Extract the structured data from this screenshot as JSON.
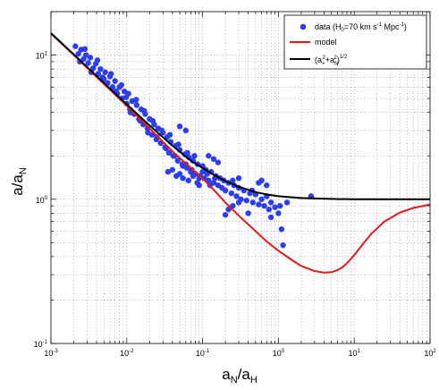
{
  "chart_data": {
    "type": "scatter",
    "x_scale": "log",
    "y_scale": "log",
    "xlim": [
      0.001,
      100
    ],
    "ylim": [
      0.1,
      20
    ],
    "grid": true,
    "legend_position": "top-right",
    "x_ticks": [
      0.001,
      0.01,
      0.1,
      1,
      10,
      100
    ],
    "y_ticks": [
      0.1,
      1,
      10
    ],
    "xlabel": {
      "main": "a",
      "sub1": "N",
      "mid": "/a",
      "sub2": "H"
    },
    "ylabel": {
      "main": "a/a",
      "sub": "N"
    },
    "tick_label": {
      "base": "10",
      "exponents_x": [
        "-3",
        "-2",
        "-1",
        "0",
        "1",
        "2"
      ],
      "exponents_y": [
        "-1",
        "0",
        "1"
      ]
    },
    "legend": {
      "data": {
        "prefix": "data (H",
        "sub": "0",
        "mid": "=70 km s",
        "sup1": "-1",
        "suffix": " Mpc",
        "sup2": "-1",
        "end": ")"
      },
      "model": "model",
      "curve": {
        "open": "(a",
        "sub1": "+",
        "sup1": "2",
        "plus": "+a",
        "sub2": "N",
        "sup2": "2",
        "close": ")",
        "sup3": "1/2"
      }
    },
    "series": [
      {
        "name": "data",
        "kind": "scatter",
        "color": "#2b3ef0",
        "points": [
          [
            0.0021,
            11.5
          ],
          [
            0.0023,
            10.2
          ],
          [
            0.0025,
            10.9
          ],
          [
            0.0027,
            9.4
          ],
          [
            0.0029,
            10.0
          ],
          [
            0.0031,
            8.8
          ],
          [
            0.0033,
            9.6
          ],
          [
            0.0036,
            8.1
          ],
          [
            0.0039,
            8.7
          ],
          [
            0.0042,
            7.4
          ],
          [
            0.0045,
            8.0
          ],
          [
            0.0048,
            7.0
          ],
          [
            0.0052,
            7.6
          ],
          [
            0.0056,
            6.4
          ],
          [
            0.006,
            7.1
          ],
          [
            0.0065,
            6.0
          ],
          [
            0.007,
            6.6
          ],
          [
            0.0075,
            5.4
          ],
          [
            0.008,
            6.0
          ],
          [
            0.0086,
            5.0
          ],
          [
            0.0093,
            5.6
          ],
          [
            0.01,
            4.6
          ],
          [
            0.0105,
            5.4
          ],
          [
            0.011,
            4.2
          ],
          [
            0.0118,
            4.8
          ],
          [
            0.0126,
            3.9
          ],
          [
            0.0135,
            4.5
          ],
          [
            0.0145,
            3.6
          ],
          [
            0.0155,
            4.2
          ],
          [
            0.0165,
            3.3
          ],
          [
            0.0175,
            3.9
          ],
          [
            0.0188,
            3.1
          ],
          [
            0.02,
            3.6
          ],
          [
            0.0215,
            2.8
          ],
          [
            0.023,
            3.3
          ],
          [
            0.0245,
            2.6
          ],
          [
            0.026,
            3.1
          ],
          [
            0.028,
            2.45
          ],
          [
            0.03,
            2.9
          ],
          [
            0.032,
            2.3
          ],
          [
            0.034,
            2.7
          ],
          [
            0.036,
            2.1
          ],
          [
            0.038,
            2.5
          ],
          [
            0.041,
            2.0
          ],
          [
            0.044,
            2.35
          ],
          [
            0.047,
            1.85
          ],
          [
            0.05,
            2.2
          ],
          [
            0.054,
            1.75
          ],
          [
            0.058,
            2.05
          ],
          [
            0.062,
            1.65
          ],
          [
            0.066,
            1.95
          ],
          [
            0.07,
            1.55
          ],
          [
            0.075,
            1.85
          ],
          [
            0.08,
            1.5
          ],
          [
            0.086,
            1.75
          ],
          [
            0.092,
            1.45
          ],
          [
            0.1,
            1.7
          ],
          [
            0.105,
            1.4
          ],
          [
            0.11,
            1.6
          ],
          [
            0.12,
            1.35
          ],
          [
            0.13,
            1.55
          ],
          [
            0.14,
            1.3
          ],
          [
            0.15,
            1.45
          ],
          [
            0.16,
            1.25
          ],
          [
            0.17,
            1.4
          ],
          [
            0.18,
            1.2
          ],
          [
            0.19,
            1.35
          ],
          [
            0.2,
            1.15
          ],
          [
            0.22,
            1.3
          ],
          [
            0.24,
            1.1
          ],
          [
            0.26,
            1.25
          ],
          [
            0.28,
            1.05
          ],
          [
            0.3,
            1.2
          ],
          [
            0.32,
            1.0
          ],
          [
            0.35,
            1.15
          ],
          [
            0.38,
            0.98
          ],
          [
            0.42,
            1.1
          ],
          [
            0.46,
            0.95
          ],
          [
            0.5,
            1.08
          ],
          [
            0.55,
            0.92
          ],
          [
            0.6,
            1.0
          ],
          [
            0.65,
            0.9
          ],
          [
            0.7,
            1.05
          ],
          [
            0.75,
            0.85
          ],
          [
            0.8,
            0.95
          ],
          [
            0.9,
            0.88
          ],
          [
            1.0,
            0.8
          ],
          [
            1.05,
            0.9
          ],
          [
            1.1,
            0.62
          ],
          [
            1.15,
            0.48
          ],
          [
            0.0024,
            9.0
          ],
          [
            0.0028,
            11.0
          ],
          [
            0.0034,
            7.6
          ],
          [
            0.0041,
            9.2
          ],
          [
            0.005,
            6.8
          ],
          [
            0.0062,
            7.4
          ],
          [
            0.0072,
            5.6
          ],
          [
            0.0085,
            6.2
          ],
          [
            0.0098,
            5.1
          ],
          [
            0.0112,
            4.0
          ],
          [
            0.0133,
            4.9
          ],
          [
            0.015,
            3.5
          ],
          [
            0.017,
            4.1
          ],
          [
            0.019,
            2.9
          ],
          [
            0.022,
            3.5
          ],
          [
            0.025,
            2.7
          ],
          [
            0.029,
            3.0
          ],
          [
            0.033,
            2.25
          ],
          [
            0.037,
            2.8
          ],
          [
            0.043,
            2.0
          ],
          [
            0.048,
            2.4
          ],
          [
            0.055,
            1.7
          ],
          [
            0.063,
            2.1
          ],
          [
            0.072,
            1.6
          ],
          [
            0.078,
            2.0
          ],
          [
            0.09,
            1.4
          ],
          [
            0.1,
            1.55
          ],
          [
            0.115,
            1.5
          ],
          [
            0.125,
            1.25
          ],
          [
            0.145,
            1.4
          ],
          [
            0.04,
            1.6
          ],
          [
            0.05,
            1.5
          ],
          [
            0.06,
            1.75
          ],
          [
            0.07,
            1.55
          ],
          [
            0.085,
            1.3
          ],
          [
            0.12,
            2.0
          ],
          [
            0.14,
            1.9
          ],
          [
            0.16,
            1.8
          ],
          [
            0.05,
            3.2
          ],
          [
            0.06,
            3.0
          ],
          [
            0.2,
            0.78
          ],
          [
            0.22,
            0.85
          ],
          [
            0.25,
            0.9
          ],
          [
            0.3,
            0.95
          ],
          [
            0.4,
            0.8
          ],
          [
            0.6,
            1.35
          ],
          [
            0.7,
            1.25
          ],
          [
            0.8,
            0.75
          ],
          [
            1.3,
            0.95
          ],
          [
            2.7,
            1.05
          ],
          [
            0.3,
            1.4
          ],
          [
            0.45,
            1.15
          ],
          [
            0.55,
            1.3
          ],
          [
            0.25,
            1.35
          ],
          [
            0.035,
            1.55
          ],
          [
            0.045,
            1.45
          ],
          [
            0.055,
            1.4
          ],
          [
            0.065,
            1.35
          ],
          [
            0.075,
            1.45
          ],
          [
            0.09,
            1.25
          ]
        ]
      },
      {
        "name": "model",
        "kind": "line",
        "color": "#e01b1b",
        "points": [
          [
            0.001,
            14.1
          ],
          [
            0.002,
            10.0
          ],
          [
            0.005,
            6.3
          ],
          [
            0.01,
            4.45
          ],
          [
            0.02,
            3.1
          ],
          [
            0.04,
            2.15
          ],
          [
            0.07,
            1.65
          ],
          [
            0.1,
            1.4
          ],
          [
            0.15,
            1.12
          ],
          [
            0.2,
            0.95
          ],
          [
            0.3,
            0.77
          ],
          [
            0.5,
            0.6
          ],
          [
            0.7,
            0.51
          ],
          [
            1.0,
            0.44
          ],
          [
            1.5,
            0.38
          ],
          [
            2.0,
            0.345
          ],
          [
            3.0,
            0.318
          ],
          [
            4.0,
            0.31
          ],
          [
            5.0,
            0.312
          ],
          [
            6.0,
            0.322
          ],
          [
            7.0,
            0.338
          ],
          [
            8.0,
            0.36
          ],
          [
            10.0,
            0.41
          ],
          [
            13.0,
            0.49
          ],
          [
            17.0,
            0.58
          ],
          [
            25.0,
            0.7
          ],
          [
            40.0,
            0.81
          ],
          [
            60.0,
            0.87
          ],
          [
            100.0,
            0.92
          ]
        ]
      },
      {
        "name": "(a+²+aN²)^1/2",
        "kind": "line",
        "color": "#000000",
        "points": [
          [
            0.001,
            14.2
          ],
          [
            0.002,
            10.1
          ],
          [
            0.005,
            6.4
          ],
          [
            0.01,
            4.55
          ],
          [
            0.02,
            3.25
          ],
          [
            0.04,
            2.35
          ],
          [
            0.07,
            1.85
          ],
          [
            0.1,
            1.65
          ],
          [
            0.15,
            1.45
          ],
          [
            0.2,
            1.34
          ],
          [
            0.3,
            1.22
          ],
          [
            0.5,
            1.12
          ],
          [
            0.7,
            1.08
          ],
          [
            1.0,
            1.05
          ],
          [
            2.0,
            1.02
          ],
          [
            5.0,
            1.005
          ],
          [
            10.0,
            1.0
          ],
          [
            100.0,
            1.0
          ]
        ]
      }
    ]
  }
}
